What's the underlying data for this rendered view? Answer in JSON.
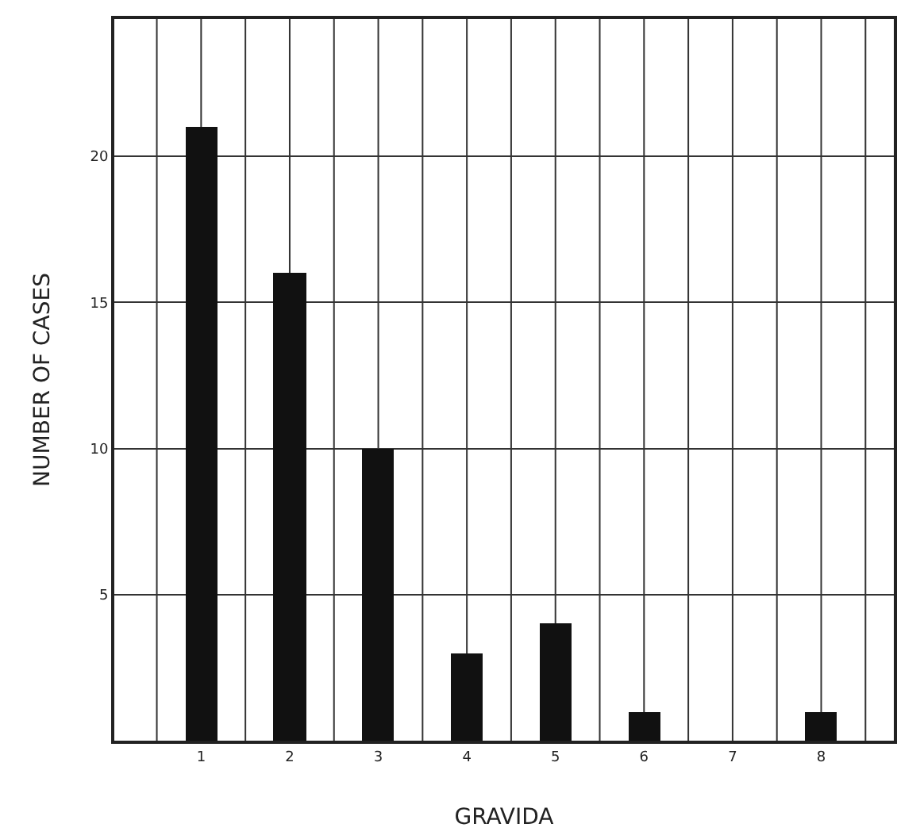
{
  "chart_data": {
    "type": "bar",
    "xlabel": "GRAVIDA",
    "ylabel": "NUMBER OF CASES",
    "categories": [
      "1",
      "2",
      "3",
      "4",
      "5",
      "6",
      "7",
      "8"
    ],
    "values": [
      21,
      16,
      10,
      3,
      4,
      1,
      0,
      1
    ],
    "color": "#111111",
    "ylim": [
      0,
      24.7
    ],
    "yticks": [
      5,
      10,
      15,
      20
    ],
    "grid": true
  }
}
